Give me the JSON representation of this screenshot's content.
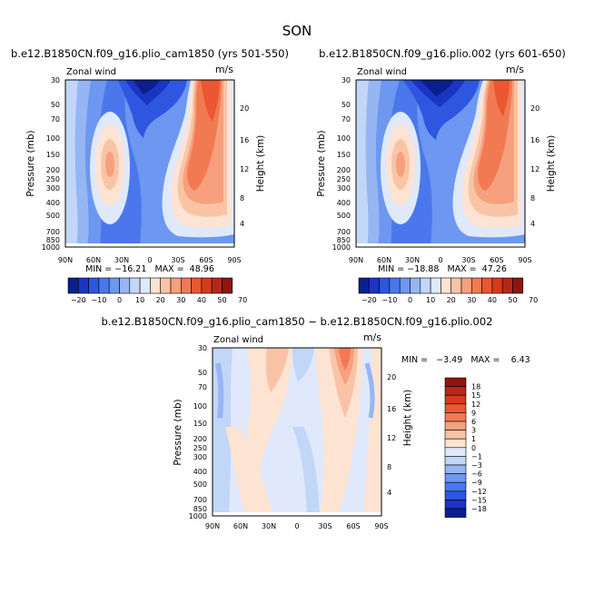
{
  "main_title": "SON",
  "colors": {
    "neg": [
      "#0b1f8c",
      "#1a35c4",
      "#2f56e0",
      "#4a78ec",
      "#6d97f0",
      "#95b6f3",
      "#c2d6f8",
      "#dfe9fb"
    ],
    "pos": [
      "#fde3d2",
      "#f9c4a6",
      "#f6a07d",
      "#f27a52",
      "#ea5730",
      "#d63a1b",
      "#b82716",
      "#8f1510"
    ]
  },
  "chart_data": [
    {
      "type": "heatmap",
      "title": "b.e12.B1850CN.f09_g16.plio_cam1850 (yrs 501-550)",
      "left_label": "Zonal wind",
      "right_label": "m/s",
      "ylabel": "Pressure (mb)",
      "ylabel_right": "Height (km)",
      "x_ticks": [
        "90N",
        "60N",
        "30N",
        "0",
        "30S",
        "60S",
        "90S"
      ],
      "y_ticks": [
        "30",
        "50",
        "70",
        "100",
        "150",
        "200",
        "250",
        "300",
        "400",
        "500",
        "700",
        "850",
        "1000"
      ],
      "y_right_ticks": [
        "4",
        "8",
        "12",
        "16",
        "20"
      ],
      "stats_text": "MIN = −16.21   MAX =  48.96",
      "min": -16.21,
      "max": 48.96,
      "colorbar": {
        "orientation": "horizontal",
        "labels": [
          "−20",
          "−10",
          "0",
          "10",
          "20",
          "30",
          "40",
          "50",
          "70"
        ]
      }
    },
    {
      "type": "heatmap",
      "title": "b.e12.B1850CN.f09_g16.plio.002 (yrs 601-650)",
      "left_label": "Zonal wind",
      "right_label": "m/s",
      "ylabel": "Pressure (mb)",
      "ylabel_right": "Height (km)",
      "x_ticks": [
        "90N",
        "60N",
        "30N",
        "0",
        "30S",
        "60S",
        "90S"
      ],
      "y_ticks": [
        "30",
        "50",
        "70",
        "100",
        "150",
        "200",
        "250",
        "300",
        "400",
        "500",
        "700",
        "850",
        "1000"
      ],
      "y_right_ticks": [
        "4",
        "8",
        "12",
        "16",
        "20"
      ],
      "stats_text": "MIN = −18.88   MAX =  47.26",
      "min": -18.88,
      "max": 47.26,
      "colorbar": {
        "orientation": "horizontal",
        "labels": [
          "−20",
          "−10",
          "0",
          "10",
          "20",
          "30",
          "40",
          "50",
          "70"
        ]
      }
    },
    {
      "type": "heatmap",
      "title": "b.e12.B1850CN.f09_g16.plio_cam1850 − b.e12.B1850CN.f09_g16.plio.002",
      "left_label": "Zonal wind",
      "right_label": "m/s",
      "ylabel": "Pressure (mb)",
      "ylabel_right": "Height (km)",
      "x_ticks": [
        "90N",
        "60N",
        "30N",
        "0",
        "30S",
        "60S",
        "90S"
      ],
      "y_ticks": [
        "30",
        "50",
        "70",
        "100",
        "150",
        "200",
        "250",
        "300",
        "400",
        "500",
        "700",
        "850",
        "1000"
      ],
      "y_right_ticks": [
        "4",
        "8",
        "12",
        "16",
        "20"
      ],
      "stats_text": "MIN =   −3.49   MAX =    6.43",
      "min": -3.49,
      "max": 6.43,
      "colorbar": {
        "orientation": "vertical",
        "labels": [
          "18",
          "15",
          "12",
          "9",
          "6",
          "3",
          "1",
          "0",
          "−1",
          "−3",
          "−6",
          "−9",
          "−12",
          "−15",
          "−18"
        ]
      }
    }
  ]
}
